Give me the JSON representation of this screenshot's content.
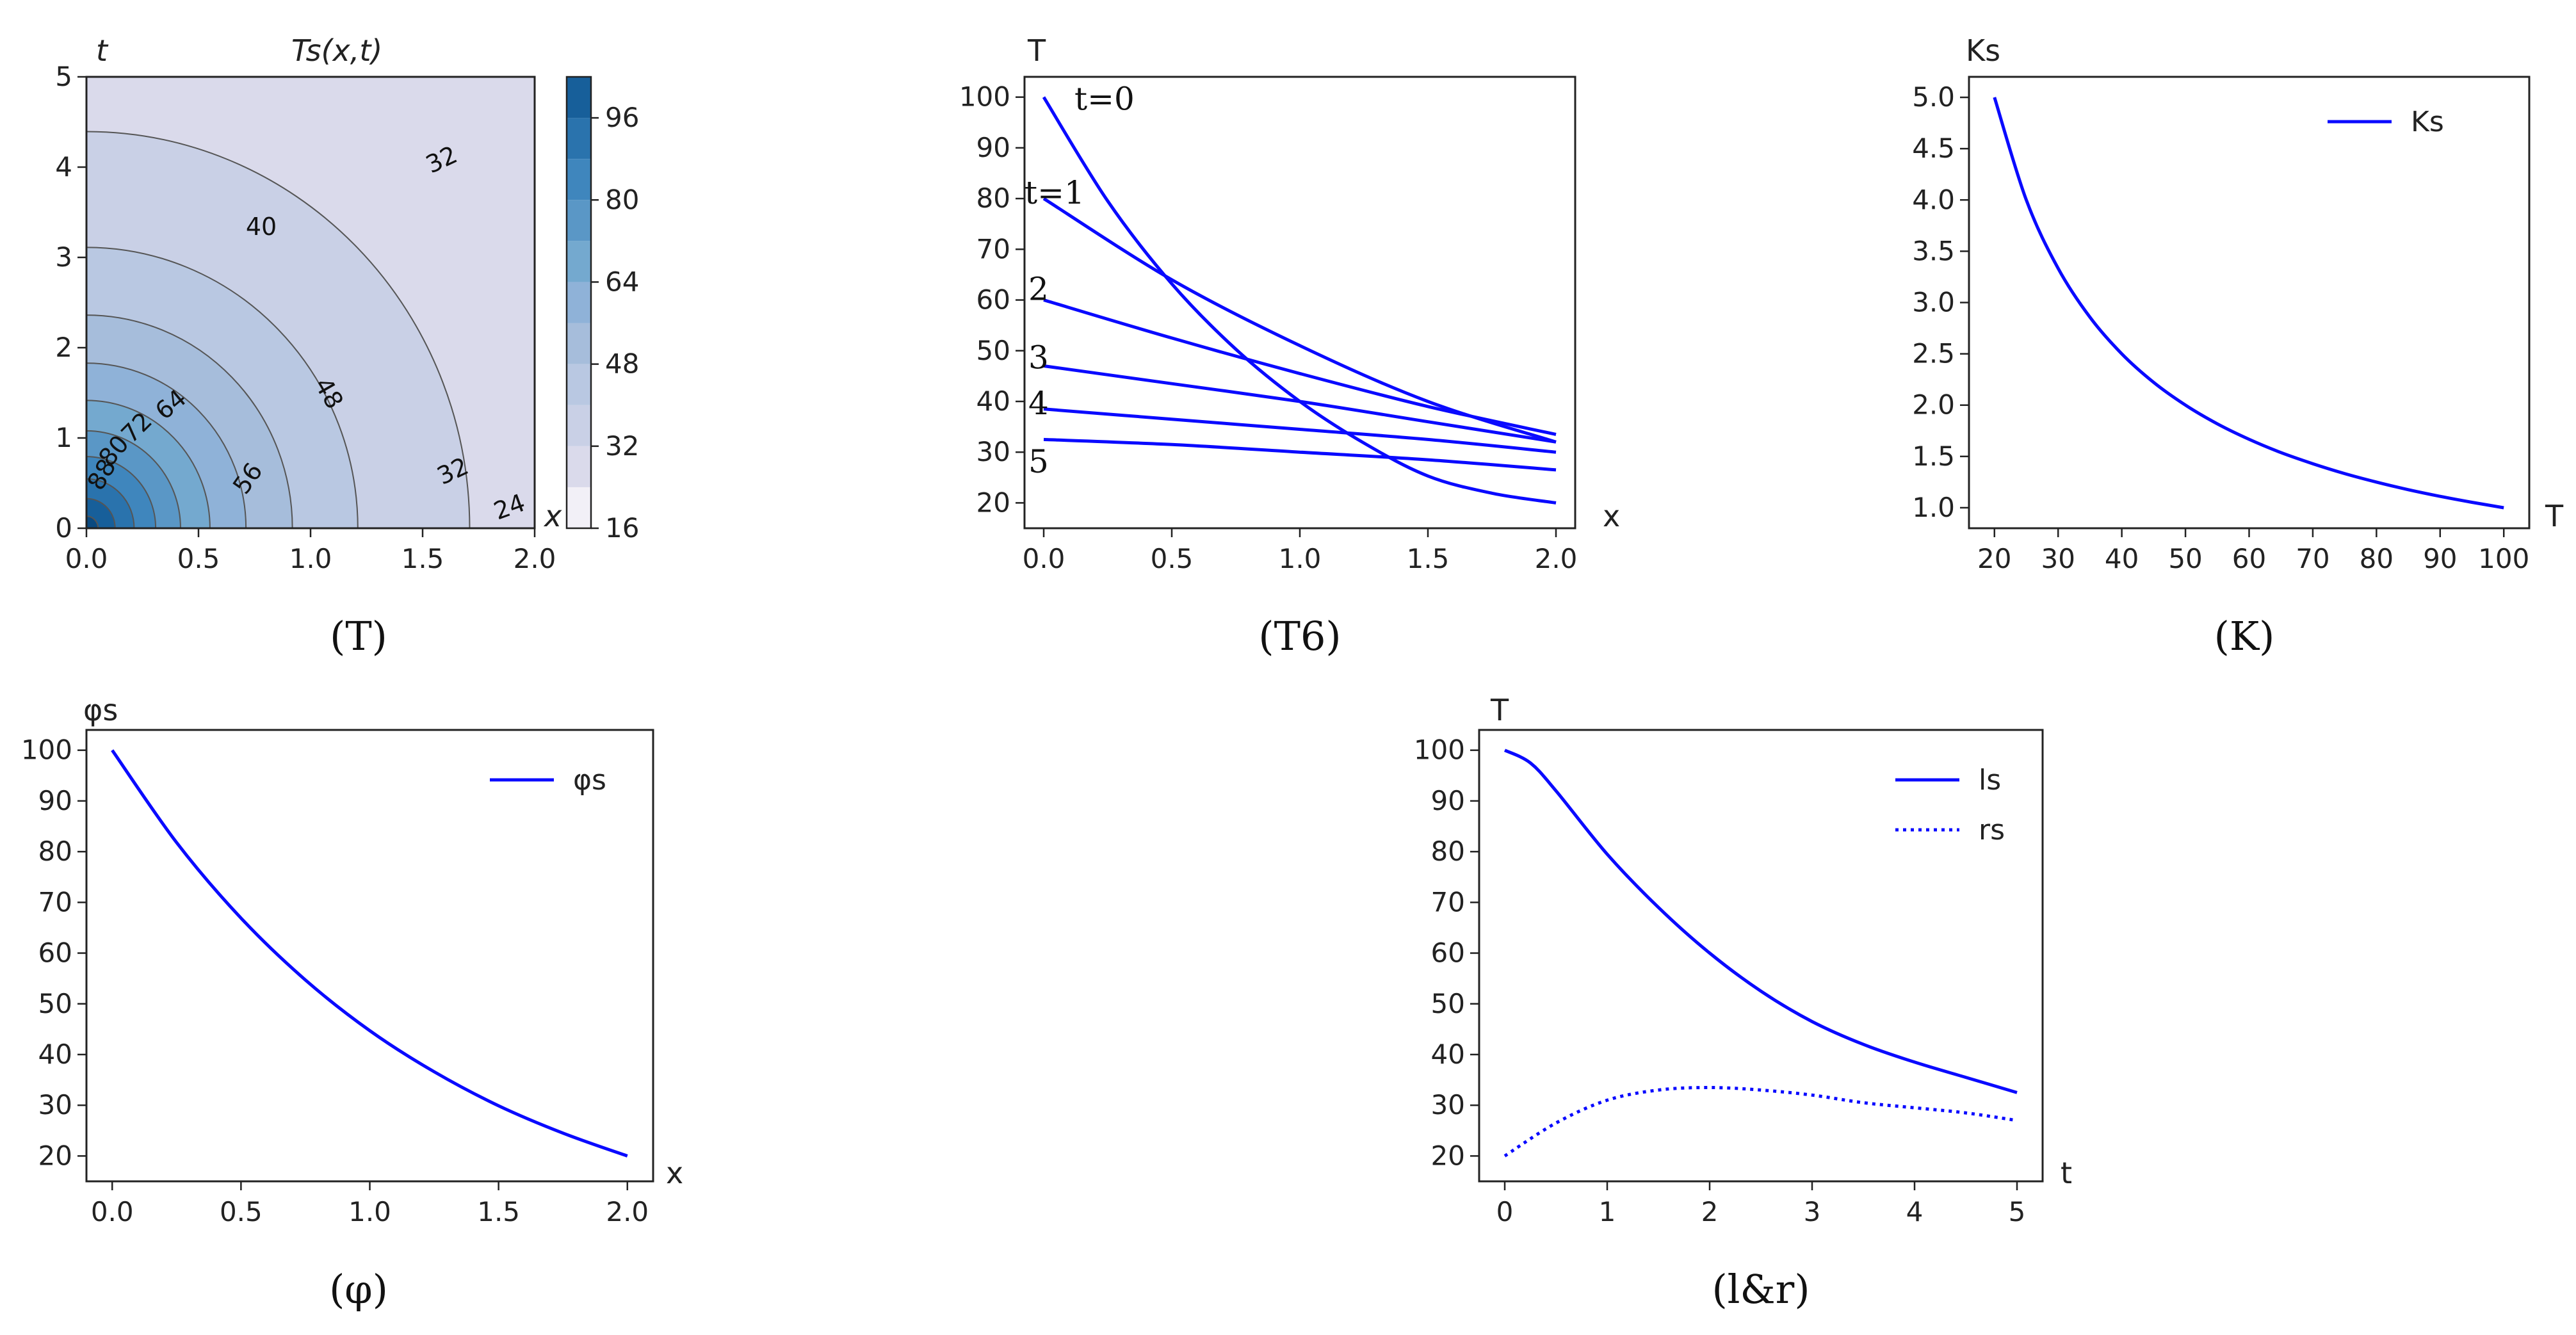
{
  "chart_data": [
    {
      "id": "T",
      "type": "contour",
      "title": "Ts(x,t)",
      "xlabel": "x",
      "ylabel": "t",
      "xlim": [
        0,
        2
      ],
      "ylim": [
        0,
        5
      ],
      "xticks": [
        "0.0",
        "0.5",
        "1.0",
        "1.5",
        "2.0"
      ],
      "yticks": [
        "0",
        "1",
        "2",
        "3",
        "4",
        "5"
      ],
      "contour_levels": [
        16,
        24,
        32,
        40,
        48,
        56,
        64,
        72,
        80,
        88,
        96,
        104
      ],
      "contour_labels": [
        "32",
        "40",
        "48",
        "64",
        "72",
        "80",
        "88",
        "56",
        "32",
        "24"
      ],
      "colorbar_ticks": [
        "16",
        "32",
        "48",
        "64",
        "80",
        "96"
      ],
      "caption": "(T)"
    },
    {
      "id": "T6",
      "type": "line",
      "xlabel": "x",
      "ylabel": "T",
      "xlim": [
        -0.05,
        2.05
      ],
      "ylim": [
        15,
        105
      ],
      "xticks": [
        "0.0",
        "0.5",
        "1.0",
        "1.5",
        "2.0"
      ],
      "yticks": [
        "20",
        "30",
        "40",
        "50",
        "60",
        "70",
        "80",
        "90",
        "100"
      ],
      "series": [
        {
          "name": "t=0",
          "x": [
            0,
            0.25,
            0.5,
            0.75,
            1.0,
            1.25,
            1.5,
            1.75,
            2.0
          ],
          "values": [
            100,
            79.5,
            63.2,
            50.3,
            40.0,
            31.8,
            25.3,
            21.9,
            20.0
          ]
        },
        {
          "name": "t=1",
          "x": [
            0,
            0.5,
            1.0,
            1.5,
            2.0
          ],
          "values": [
            80,
            64,
            51,
            40,
            32
          ]
        },
        {
          "name": "2",
          "x": [
            0,
            0.5,
            1.0,
            1.5,
            2.0
          ],
          "values": [
            60,
            52.5,
            45.5,
            39,
            33.5
          ]
        },
        {
          "name": "3",
          "x": [
            0,
            0.5,
            1.0,
            1.5,
            2.0
          ],
          "values": [
            47,
            43.5,
            40,
            36,
            32
          ]
        },
        {
          "name": "4",
          "x": [
            0,
            0.5,
            1.0,
            1.5,
            2.0
          ],
          "values": [
            38.5,
            36.5,
            34.5,
            32.5,
            30
          ]
        },
        {
          "name": "5",
          "x": [
            0,
            0.5,
            1.0,
            1.5,
            2.0
          ],
          "values": [
            32.5,
            31.5,
            30,
            28.5,
            26.5
          ]
        }
      ],
      "caption": "(T6)"
    },
    {
      "id": "K",
      "type": "line",
      "xlabel": "T",
      "ylabel": "Ks",
      "xlim": [
        16,
        104
      ],
      "ylim": [
        0.8,
        5.2
      ],
      "xticks": [
        "20",
        "30",
        "40",
        "50",
        "60",
        "70",
        "80",
        "90",
        "100"
      ],
      "yticks": [
        "1.0",
        "1.5",
        "2.0",
        "2.5",
        "3.0",
        "3.5",
        "4.0",
        "4.5",
        "5.0"
      ],
      "legend": "top-right",
      "series": [
        {
          "name": "Ks",
          "x": [
            20,
            25,
            30,
            35,
            40,
            45,
            50,
            55,
            60,
            65,
            70,
            75,
            80,
            85,
            90,
            95,
            100
          ],
          "values": [
            5.0,
            4.0,
            3.333,
            2.857,
            2.5,
            2.222,
            2.0,
            1.818,
            1.667,
            1.538,
            1.429,
            1.333,
            1.25,
            1.176,
            1.111,
            1.053,
            1.0
          ]
        }
      ],
      "caption": "(K)"
    },
    {
      "id": "phi",
      "type": "line",
      "xlabel": "x",
      "ylabel": "φs",
      "xlim": [
        -0.1,
        2.1
      ],
      "ylim": [
        15,
        105
      ],
      "xticks": [
        "0.0",
        "0.5",
        "1.0",
        "1.5",
        "2.0"
      ],
      "yticks": [
        "20",
        "30",
        "40",
        "50",
        "60",
        "70",
        "80",
        "90",
        "100"
      ],
      "legend": "top-right",
      "series": [
        {
          "name": "φs",
          "x": [
            0,
            0.25,
            0.5,
            0.75,
            1.0,
            1.25,
            1.5,
            1.75,
            2.0
          ],
          "values": [
            100,
            81.8,
            66.9,
            54.7,
            44.7,
            36.6,
            29.9,
            24.5,
            20.0
          ]
        }
      ],
      "caption": "(φ)"
    },
    {
      "id": "lr",
      "type": "line",
      "xlabel": "t",
      "ylabel": "T",
      "xlim": [
        -0.2,
        5.2
      ],
      "ylim": [
        16,
        104
      ],
      "xticks": [
        "0",
        "1",
        "2",
        "3",
        "4",
        "5"
      ],
      "yticks": [
        "20",
        "30",
        "40",
        "50",
        "60",
        "70",
        "80",
        "90",
        "100"
      ],
      "legend": "top-right",
      "series": [
        {
          "name": "ls",
          "style": "solid",
          "x": [
            0,
            0.25,
            0.5,
            1.0,
            1.5,
            2.0,
            2.5,
            3.0,
            3.5,
            4.0,
            4.5,
            5.0
          ],
          "values": [
            100,
            97.5,
            92,
            79.5,
            69,
            60,
            52.5,
            46.5,
            42,
            38.5,
            35.5,
            32.5
          ]
        },
        {
          "name": "rs",
          "style": "dotted",
          "x": [
            0,
            0.5,
            1.0,
            1.5,
            2.0,
            2.5,
            3.0,
            3.5,
            4.0,
            4.5,
            5.0
          ],
          "values": [
            20,
            26.5,
            31,
            33,
            33.5,
            33,
            32,
            30.5,
            29.5,
            28.5,
            27
          ]
        }
      ],
      "caption": "(l&r)"
    }
  ],
  "colors": {
    "line": "#0a0aff",
    "contour_line": "#555555",
    "colormap": [
      "#f2f0f7",
      "#dadaeb",
      "#c9d0e6",
      "#b9c8e2",
      "#a6bddb",
      "#8fb2d8",
      "#74a9cf",
      "#5a97c6",
      "#3f86bd",
      "#2a73ad",
      "#175f9a",
      "#0b4a80"
    ]
  }
}
